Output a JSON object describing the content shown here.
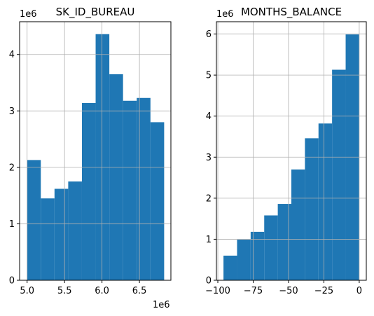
{
  "chart_data": [
    {
      "type": "histogram",
      "title": "SK_ID_BUREAU",
      "x_offset_label": "1e6",
      "y_offset_label": "1e6",
      "bin_edges": [
        5.0,
        5.183,
        5.366,
        5.549,
        5.732,
        5.915,
        6.098,
        6.281,
        6.464,
        6.647,
        6.83
      ],
      "values": [
        2.13,
        1.45,
        1.62,
        1.75,
        3.14,
        4.36,
        3.65,
        3.18,
        3.23,
        2.8
      ],
      "xlim": [
        4.9,
        6.92
      ],
      "ylim": [
        0,
        4.58
      ],
      "xticks": [
        5.0,
        5.5,
        6.0,
        6.5
      ],
      "xtick_labels": [
        "5.0",
        "5.5",
        "6.0",
        "6.5"
      ],
      "yticks": [
        0,
        1,
        2,
        3,
        4
      ],
      "ytick_labels": [
        "0",
        "1",
        "2",
        "3",
        "4"
      ],
      "grid": true,
      "bar_color": "#1f77b4"
    },
    {
      "type": "histogram",
      "title": "MONTHS_BALANCE",
      "y_offset_label": "1e6",
      "bin_edges": [
        -96,
        -86.4,
        -76.8,
        -67.2,
        -57.6,
        -48,
        -38.4,
        -28.8,
        -19.2,
        -9.6,
        0
      ],
      "values": [
        0.6,
        0.99,
        1.18,
        1.58,
        1.86,
        2.7,
        3.46,
        3.82,
        5.13,
        5.99
      ],
      "xlim": [
        -101,
        5
      ],
      "ylim": [
        0,
        6.3
      ],
      "xticks": [
        -100,
        -75,
        -50,
        -25,
        0
      ],
      "xtick_labels": [
        "−100",
        "−75",
        "−50",
        "−25",
        "0"
      ],
      "yticks": [
        0,
        1,
        2,
        3,
        4,
        5,
        6
      ],
      "ytick_labels": [
        "0",
        "1",
        "2",
        "3",
        "4",
        "5",
        "6"
      ],
      "grid": true,
      "bar_color": "#1f77b4"
    }
  ]
}
